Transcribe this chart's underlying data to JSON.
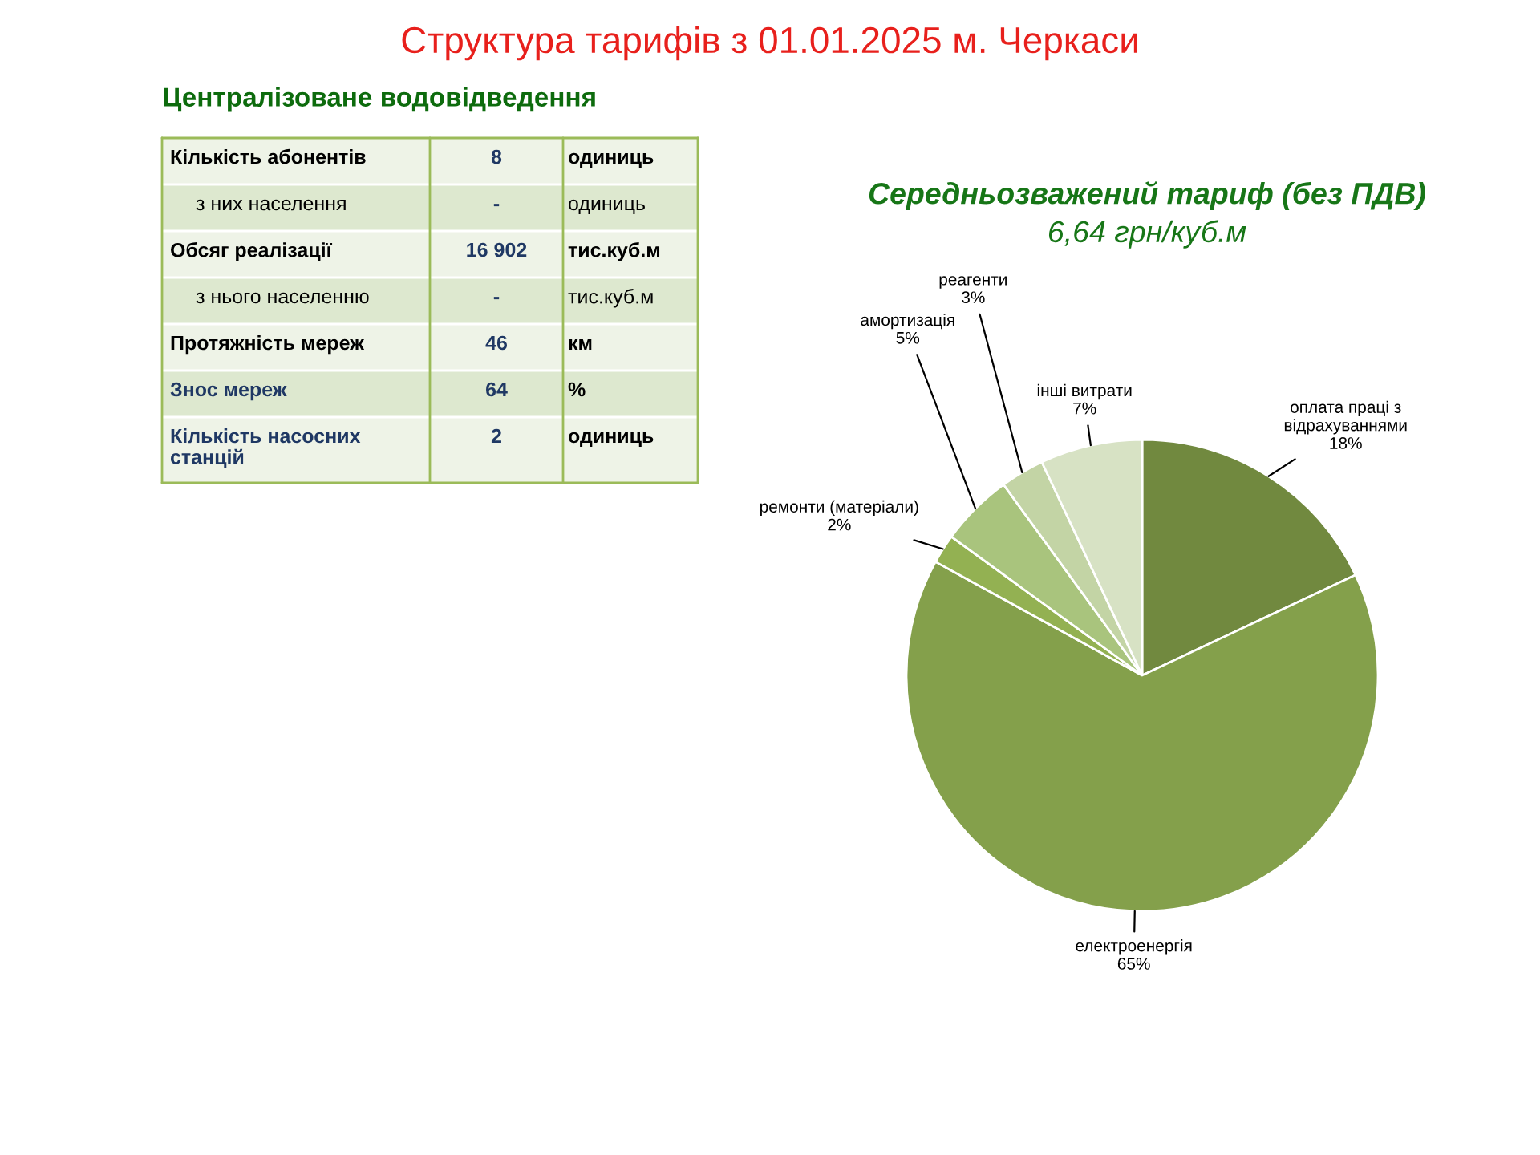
{
  "chart_data": [
    {
      "type": "other",
      "title": "Структура тарифів з 01.01.2025 м. Черкаси",
      "subtitle": "Централізоване водовідведення",
      "y_categories": [
        "Кількість абонентів",
        "з них населення",
        "Обсяг реалізації",
        "з нього населенню",
        "Протяжність мереж",
        "Знос мереж",
        "Кількість насосних станцій"
      ],
      "value_labels": [
        "8",
        "-",
        "16 902",
        "-",
        "46",
        "64",
        "2"
      ],
      "y2_categories": [
        "одиниць",
        "одиниць",
        "тис.куб.м",
        "тис.куб.м",
        "км",
        "%",
        "одиниць"
      ]
    },
    {
      "type": "pie",
      "title": "Середньозважений тариф (без ПДВ)",
      "subtitle": "6,64 грн/куб.м",
      "categories": [
        "оплата праці з відрахуваннями",
        "електроенергія",
        "ремонти (матеріали)",
        "амортизація",
        "реагенти",
        "інші витрати"
      ],
      "values": [
        18,
        65,
        2,
        5,
        3,
        7
      ],
      "value_labels": [
        "18%",
        "65%",
        "2%",
        "5%",
        "3%",
        "7%"
      ],
      "colors": [
        "#71893f",
        "#84a04b",
        "#93b152",
        "#a9c47d",
        "#c3d4a5",
        "#d7e2c4"
      ]
    }
  ]
}
